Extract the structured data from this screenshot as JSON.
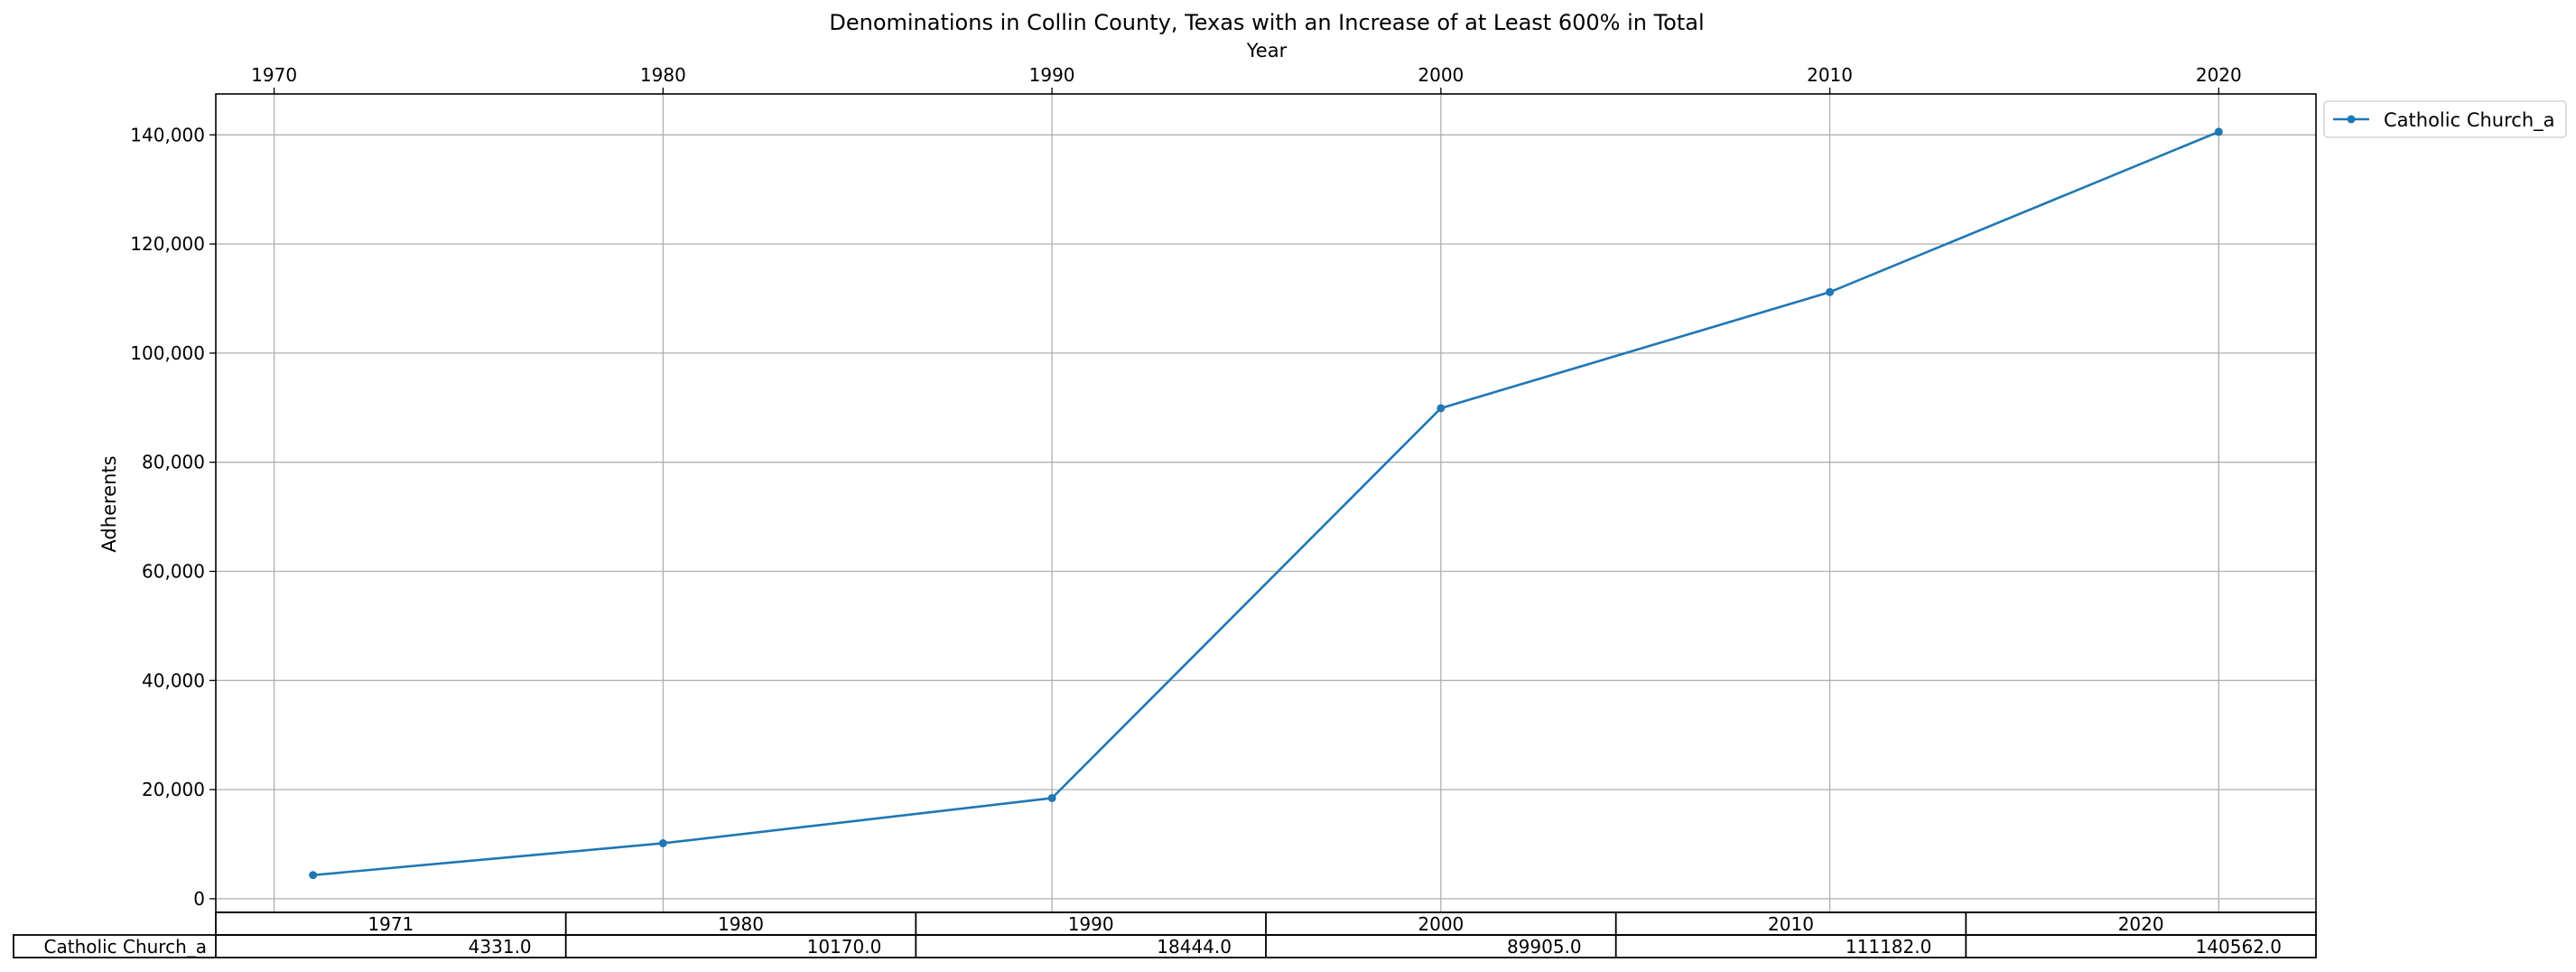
{
  "chart_data": {
    "type": "line",
    "title": "Denominations in Collin County, Texas with an Increase of at Least 600% in Total",
    "xlabel": "Year",
    "ylabel": "Adherents",
    "x_ticks": [
      1970,
      1980,
      1990,
      2000,
      2010,
      2020
    ],
    "y_ticks": [
      0,
      20000,
      40000,
      60000,
      80000,
      100000,
      120000,
      140000
    ],
    "y_tick_labels": [
      "0",
      "20,000",
      "40,000",
      "60,000",
      "80,000",
      "100,000",
      "120,000",
      "140,000"
    ],
    "xlim": [
      1968.5,
      2022.5
    ],
    "ylim": [
      -2500,
      147500
    ],
    "x_axis_position": "top",
    "grid": true,
    "legend_position": "outside-top-right",
    "x": [
      1971,
      1980,
      1990,
      2000,
      2010,
      2020
    ],
    "series": [
      {
        "name": "Catholic Church_a",
        "color": "#1f77b4",
        "values": [
          4331.0,
          10170.0,
          18444.0,
          89905.0,
          111182.0,
          140562.0
        ]
      }
    ],
    "table": {
      "columns": [
        "1971",
        "1980",
        "1990",
        "2000",
        "2010",
        "2020"
      ],
      "rows": [
        {
          "label": "Catholic Church_a",
          "cells": [
            "4331.0",
            "10170.0",
            "18444.0",
            "89905.0",
            "111182.0",
            "140562.0"
          ]
        }
      ]
    }
  }
}
